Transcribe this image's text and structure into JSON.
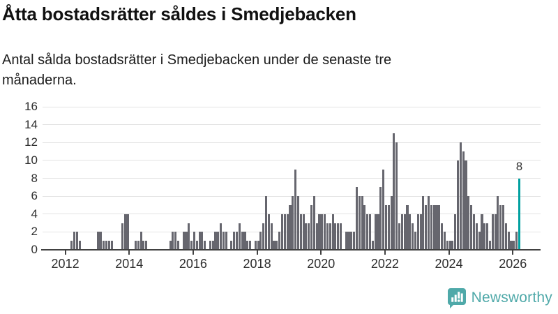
{
  "header": {
    "title": "Åtta bostadsrätter såldes i Smedjebacken",
    "subtitle_lines": [
      "Antal sålda bostadsrätter i Smedjebacken under de senaste tre",
      "månaderna."
    ]
  },
  "footer": {
    "logo_text": "Newsworthy"
  },
  "colors": {
    "bar": "#66666e",
    "highlight": "#00a0a0",
    "gridline": "#e3e3e3",
    "axis": "#414141",
    "logo_teal": "#4fa9a9",
    "text": "#1a1a1a"
  },
  "chart_data": {
    "type": "bar",
    "title": "Åtta bostadsrätter såldes i Smedjebacken",
    "subtitle": "Antal sålda bostadsrätter i Smedjebacken under de senaste tre månaderna.",
    "start_month": "2011-07",
    "end_month": "2026-03",
    "frequency": "monthly",
    "values": [
      0,
      0,
      0,
      0,
      0,
      0,
      0,
      0,
      1,
      2,
      2,
      1,
      0,
      0,
      0,
      0,
      0,
      0,
      2,
      2,
      1,
      1,
      1,
      1,
      0,
      0,
      0,
      3,
      4,
      4,
      0,
      0,
      1,
      1,
      2,
      1,
      1,
      0,
      0,
      0,
      0,
      0,
      0,
      0,
      0,
      1,
      2,
      2,
      1,
      0,
      2,
      2,
      3,
      1,
      2,
      1,
      2,
      2,
      1,
      0,
      1,
      1,
      2,
      2,
      3,
      2,
      2,
      0,
      1,
      2,
      2,
      3,
      2,
      2,
      1,
      1,
      0,
      1,
      1,
      2,
      3,
      6,
      4,
      3,
      1,
      1,
      2,
      4,
      4,
      4,
      5,
      6,
      9,
      6,
      4,
      4,
      3,
      3,
      5,
      6,
      3,
      4,
      4,
      4,
      3,
      3,
      4,
      3,
      3,
      3,
      0,
      2,
      2,
      2,
      2,
      7,
      6,
      6,
      5,
      4,
      4,
      1,
      4,
      4,
      7,
      9,
      5,
      5,
      6,
      13,
      12,
      3,
      4,
      4,
      5,
      4,
      3,
      2,
      4,
      4,
      6,
      5,
      6,
      5,
      5,
      5,
      5,
      3,
      2,
      1,
      1,
      1,
      4,
      10,
      12,
      11,
      10,
      6,
      5,
      4,
      3,
      2,
      4,
      3,
      3,
      1,
      4,
      4,
      6,
      5,
      5,
      3,
      2,
      1,
      1,
      2,
      8
    ],
    "highlight_last": true,
    "last_value_label": "8",
    "ylim": [
      0,
      16
    ],
    "y_ticks": [
      0,
      2,
      4,
      6,
      8,
      10,
      12,
      14,
      16
    ],
    "x_tick_years": [
      2012,
      2014,
      2016,
      2018,
      2020,
      2022,
      2024,
      2026
    ],
    "grid": true,
    "legend": "none"
  }
}
